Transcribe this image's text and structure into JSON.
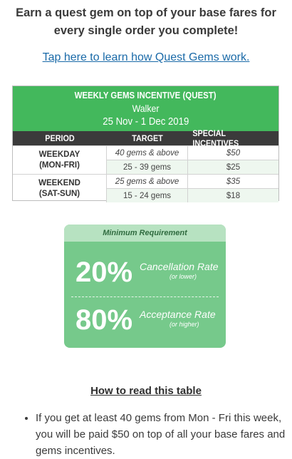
{
  "headline": "Earn a quest gem on top of your base fares for every single order you complete!",
  "learn_link": "Tap here to learn how Quest Gems work.",
  "table": {
    "title": "WEEKLY GEMS INCENTIVE (QUEST)",
    "tier": "Walker",
    "date_range": "25 Nov - 1 Dec 2019",
    "columns": [
      "PERIOD",
      "TARGET",
      "SPECIAL INCENTIVES"
    ],
    "groups": [
      {
        "period_line1": "WEEKDAY",
        "period_line2": "(MON-FRI)",
        "rows": [
          {
            "target": "40 gems & above",
            "incentive": "$50"
          },
          {
            "target": "25 - 39 gems",
            "incentive": "$25"
          }
        ]
      },
      {
        "period_line1": "WEEKEND",
        "period_line2": "(SAT-SUN)",
        "rows": [
          {
            "target": "25 gems & above",
            "incentive": "$35"
          },
          {
            "target": "15 - 24 gems",
            "incentive": "$18"
          }
        ]
      }
    ]
  },
  "requirement": {
    "title": "Minimum Requirement",
    "items": [
      {
        "percent": "20%",
        "label": "Cancellation Rate",
        "note": "(or lower)"
      },
      {
        "percent": "80%",
        "label": "Acceptance Rate",
        "note": "(or higher)"
      }
    ]
  },
  "how_to_read": {
    "title": "How to read this table",
    "bullets": [
      "If you get at least 40 gems from Mon - Fri this week, you will be paid $50 on top of all your base fares and gems incentives."
    ]
  },
  "colors": {
    "header_green": "#43b85c",
    "card_green": "#76c98b",
    "link_blue": "#1a6aa8"
  }
}
